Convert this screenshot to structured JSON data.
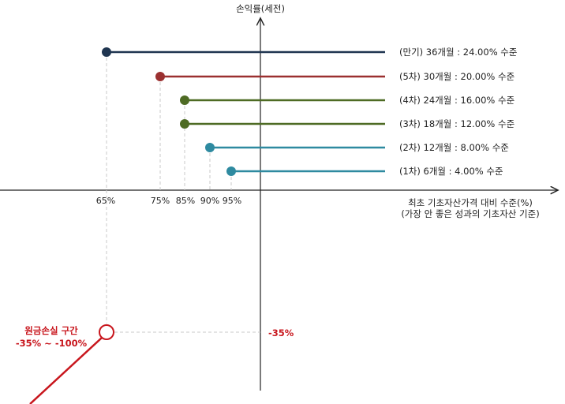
{
  "y_axis_label": "손익률(세전)",
  "x_axis_label": {
    "line1": "최초 기초자산가격 대비 수준(%)",
    "line2": "(가장 안 좋은 성과의 기초자산 기준)"
  },
  "steps": [
    {
      "label": "(만기) 36개월 : 24.00% 수준",
      "barrier": "65%",
      "color": "#1f3550"
    },
    {
      "label": "(5차) 30개월 : 20.00% 수준",
      "barrier": "75%",
      "color": "#9b3030"
    },
    {
      "label": "(4차) 24개월 : 16.00% 수준",
      "barrier": "85%",
      "color": "#4e6b24"
    },
    {
      "label": "(3차) 18개월 : 12.00% 수준",
      "barrier": "85%",
      "color": "#4e6b24"
    },
    {
      "label": "(2차) 12개월 : 8.00% 수준",
      "barrier": "90%",
      "color": "#2e8aa0"
    },
    {
      "label": "(1차) 6개월 : 4.00% 수준",
      "barrier": "95%",
      "color": "#2e8aa0"
    }
  ],
  "x_ticks": [
    "65%",
    "75%",
    "85%",
    "90%",
    "95%"
  ],
  "loss_zone": {
    "line1": "원금손실 구간",
    "line2": "-35% ~ -100%",
    "value": "-35%",
    "color": "#c8161d"
  }
}
